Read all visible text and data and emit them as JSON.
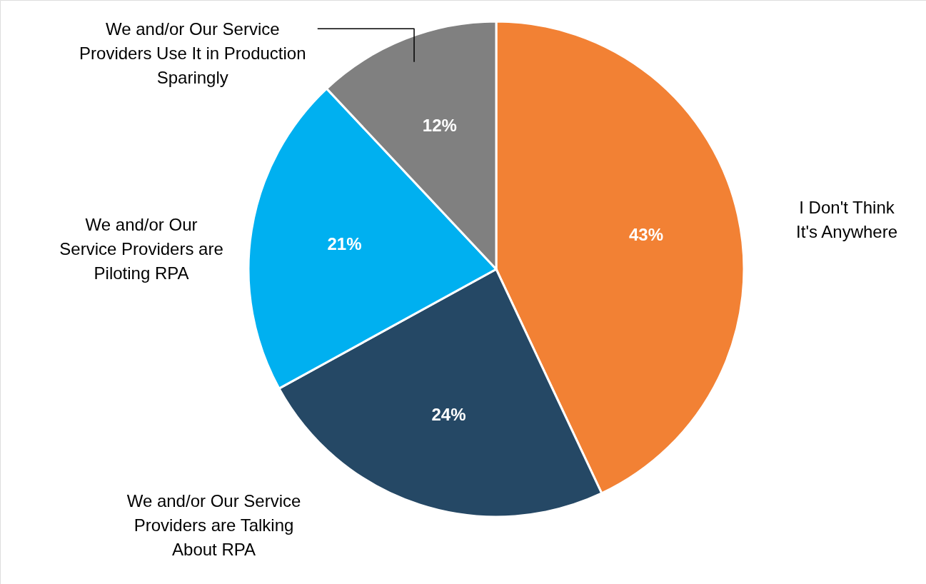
{
  "chart_data": {
    "type": "pie",
    "categories": [
      "I Don't Think\nIt's Anywhere",
      "We and/or Our Service\nProviders are Talking\nAbout RPA",
      "We and/or Our\nService Providers are\nPiloting RPA",
      "We and/or Our Service\nProviders Use It in Production\nSparingly"
    ],
    "values": [
      43,
      24,
      21,
      12
    ],
    "colors": [
      "#f28134",
      "#254865",
      "#00b0f0",
      "#808080"
    ],
    "value_labels": [
      "43%",
      "24%",
      "21%",
      "12%"
    ]
  }
}
